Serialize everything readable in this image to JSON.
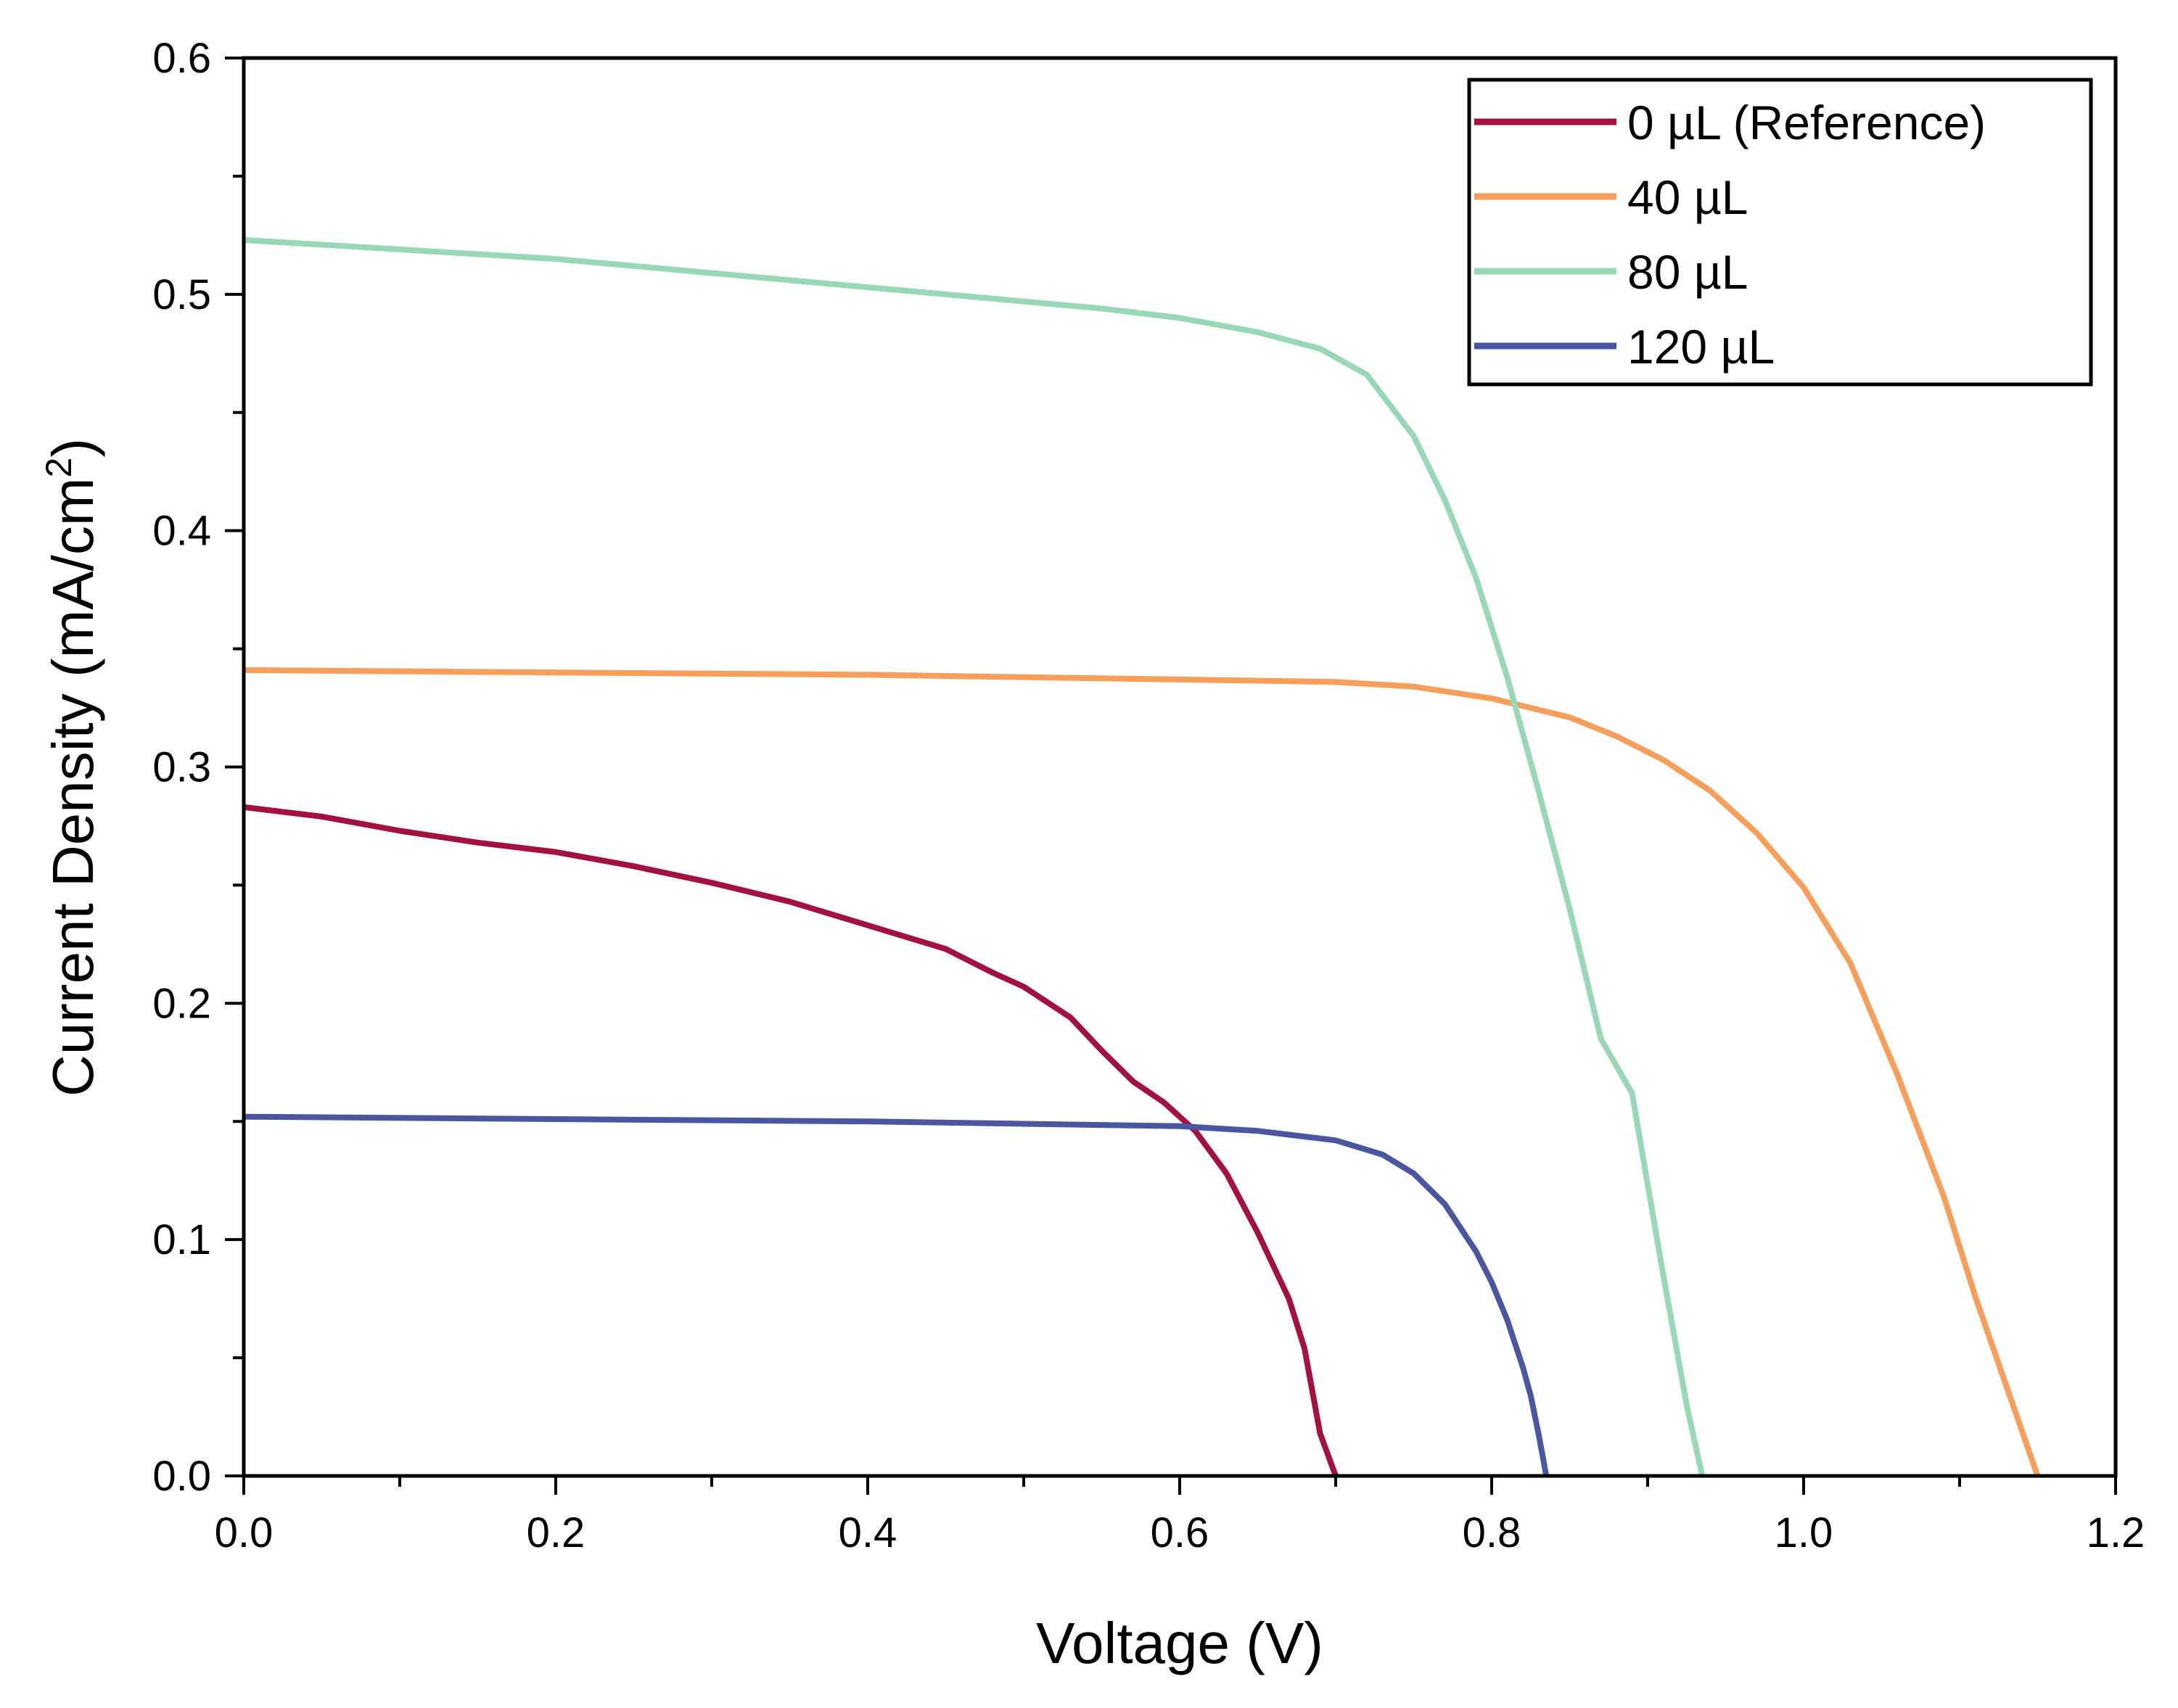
{
  "chart_data": {
    "type": "line",
    "xlabel": "Voltage (V)",
    "ylabel": {
      "base": "Current Density (mA/cm",
      "sup": "2",
      "close": ")"
    },
    "xlim": [
      0,
      1.2
    ],
    "ylim": [
      0,
      0.6
    ],
    "x_ticks": [
      "0.0",
      "0.2",
      "0.4",
      "0.6",
      "0.8",
      "1.0",
      "1.2"
    ],
    "y_ticks": [
      "0.0",
      "0.1",
      "0.2",
      "0.3",
      "0.4",
      "0.5",
      "0.6"
    ],
    "grid": false,
    "legend_position": "top-right",
    "series": [
      {
        "name": "0 µL (Reference)",
        "color": "#A3123F",
        "points": [
          [
            0.0,
            0.283
          ],
          [
            0.05,
            0.279
          ],
          [
            0.1,
            0.273
          ],
          [
            0.15,
            0.268
          ],
          [
            0.2,
            0.264
          ],
          [
            0.25,
            0.258
          ],
          [
            0.3,
            0.251
          ],
          [
            0.35,
            0.243
          ],
          [
            0.4,
            0.233
          ],
          [
            0.45,
            0.223
          ],
          [
            0.48,
            0.213
          ],
          [
            0.5,
            0.207
          ],
          [
            0.53,
            0.194
          ],
          [
            0.55,
            0.18
          ],
          [
            0.57,
            0.167
          ],
          [
            0.59,
            0.158
          ],
          [
            0.61,
            0.146
          ],
          [
            0.63,
            0.128
          ],
          [
            0.65,
            0.103
          ],
          [
            0.67,
            0.075
          ],
          [
            0.68,
            0.054
          ],
          [
            0.69,
            0.018
          ],
          [
            0.7,
            0.0
          ]
        ]
      },
      {
        "name": "40 µL",
        "color": "#F89E5B",
        "points": [
          [
            0.0,
            0.341
          ],
          [
            0.2,
            0.34
          ],
          [
            0.4,
            0.339
          ],
          [
            0.6,
            0.337
          ],
          [
            0.7,
            0.336
          ],
          [
            0.75,
            0.334
          ],
          [
            0.8,
            0.329
          ],
          [
            0.85,
            0.321
          ],
          [
            0.88,
            0.313
          ],
          [
            0.91,
            0.303
          ],
          [
            0.94,
            0.29
          ],
          [
            0.97,
            0.272
          ],
          [
            1.0,
            0.249
          ],
          [
            1.03,
            0.217
          ],
          [
            1.06,
            0.17
          ],
          [
            1.09,
            0.118
          ],
          [
            1.11,
            0.076
          ],
          [
            1.13,
            0.038
          ],
          [
            1.15,
            0.0
          ]
        ]
      },
      {
        "name": "80 µL",
        "color": "#98D8B6",
        "points": [
          [
            0.0,
            0.523
          ],
          [
            0.1,
            0.519
          ],
          [
            0.2,
            0.515
          ],
          [
            0.3,
            0.509
          ],
          [
            0.4,
            0.503
          ],
          [
            0.5,
            0.497
          ],
          [
            0.55,
            0.494
          ],
          [
            0.6,
            0.49
          ],
          [
            0.65,
            0.484
          ],
          [
            0.69,
            0.477
          ],
          [
            0.72,
            0.466
          ],
          [
            0.75,
            0.44
          ],
          [
            0.77,
            0.413
          ],
          [
            0.79,
            0.38
          ],
          [
            0.81,
            0.338
          ],
          [
            0.83,
            0.29
          ],
          [
            0.85,
            0.24
          ],
          [
            0.87,
            0.185
          ],
          [
            0.89,
            0.162
          ],
          [
            0.91,
            0.085
          ],
          [
            0.925,
            0.03
          ],
          [
            0.935,
            0.0
          ]
        ]
      },
      {
        "name": "120 µL",
        "color": "#4A56A0",
        "points": [
          [
            0.0,
            0.152
          ],
          [
            0.2,
            0.151
          ],
          [
            0.4,
            0.15
          ],
          [
            0.5,
            0.149
          ],
          [
            0.6,
            0.148
          ],
          [
            0.65,
            0.146
          ],
          [
            0.7,
            0.142
          ],
          [
            0.73,
            0.136
          ],
          [
            0.75,
            0.128
          ],
          [
            0.77,
            0.115
          ],
          [
            0.79,
            0.095
          ],
          [
            0.8,
            0.082
          ],
          [
            0.81,
            0.066
          ],
          [
            0.82,
            0.046
          ],
          [
            0.825,
            0.034
          ],
          [
            0.83,
            0.018
          ],
          [
            0.835,
            0.0
          ]
        ]
      }
    ]
  }
}
